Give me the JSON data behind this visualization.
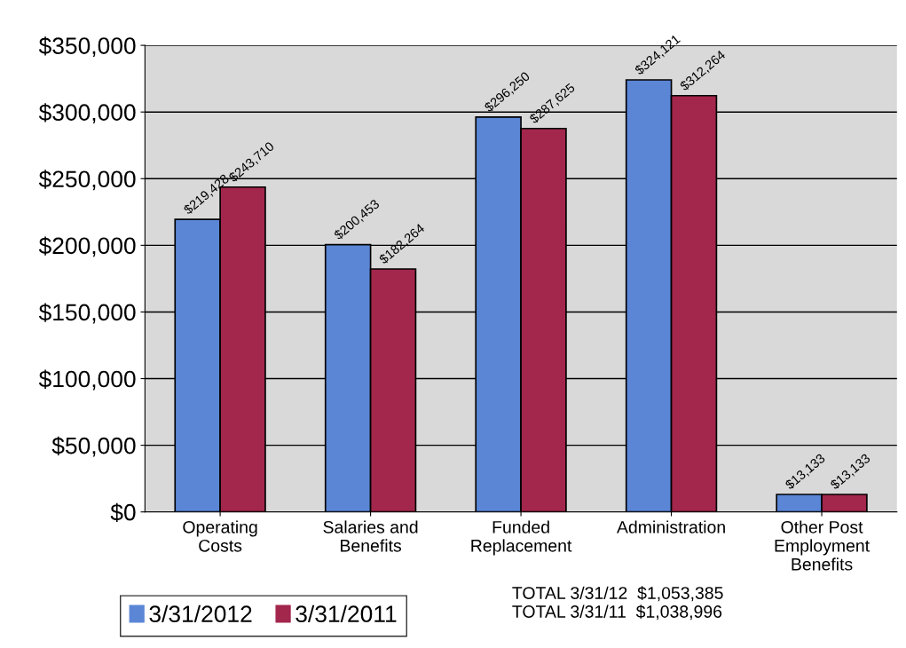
{
  "chart_data": {
    "type": "bar",
    "categories": [
      "Operating\nCosts",
      "Salaries and\nBenefits",
      "Funded\nReplacement",
      "Administration",
      "Other Post\nEmployment\nBenefits"
    ],
    "series": [
      {
        "name": "3/31/2012",
        "color": "#5b86d6",
        "values": [
          219428,
          200453,
          296250,
          324121,
          13133
        ]
      },
      {
        "name": "3/31/2011",
        "color": "#a3264c",
        "values": [
          243710,
          182264,
          287625,
          312264,
          13133
        ]
      }
    ],
    "ylim": [
      0,
      350000
    ],
    "yticks": [
      {
        "value": 0,
        "label": "$0"
      },
      {
        "value": 50000,
        "label": "$50,000"
      },
      {
        "value": 100000,
        "label": "$100,000"
      },
      {
        "value": 150000,
        "label": "$150,000"
      },
      {
        "value": 200000,
        "label": "$200,000"
      },
      {
        "value": 250000,
        "label": "$250,000"
      },
      {
        "value": 300000,
        "label": "$300,000"
      },
      {
        "value": 350000,
        "label": "$350,000"
      }
    ],
    "value_labels": [
      [
        "$219,428",
        "$200,453",
        "$296,250",
        "$324,121",
        "$13,133"
      ],
      [
        "$243,710",
        "$182,264",
        "$287,625",
        "$312,264",
        "$13,133"
      ]
    ],
    "annotations": [
      "TOTAL 3/31/12  $1,053,385\nTOTAL 3/31/11  $1,038,996"
    ],
    "grid": "y",
    "legend": "bottom left"
  }
}
